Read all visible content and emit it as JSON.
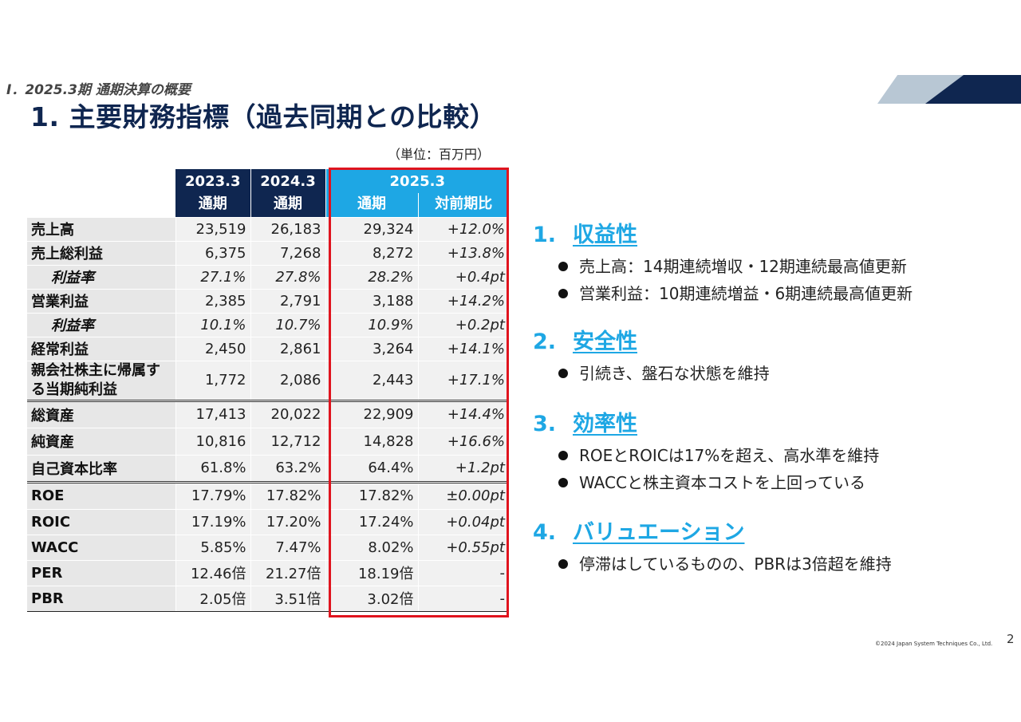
{
  "section_label": "Ⅰ．2025.3期 通期決算の概要",
  "title": "1. 主要財務指標（過去同期との比較）",
  "unit_note": "（単位：百万円）",
  "table": {
    "headers": {
      "col1_top": "2023.3",
      "col1_bottom": "通期",
      "col2_top": "2024.3",
      "col2_bottom": "通期",
      "col3_top": "2025.3",
      "col3_bottom": "通期",
      "col4_bottom": "対前期比"
    },
    "rows": [
      {
        "label": "売上高",
        "v1": "23,519",
        "v2": "26,183",
        "v3": "29,324",
        "chg": "+12.0%"
      },
      {
        "label": "売上総利益",
        "v1": "6,375",
        "v2": "7,268",
        "v3": "8,272",
        "chg": "+13.8%"
      },
      {
        "label": "利益率",
        "v1": "27.1%",
        "v2": "27.8%",
        "v3": "28.2%",
        "chg": "+0.4pt"
      },
      {
        "label": "営業利益",
        "v1": "2,385",
        "v2": "2,791",
        "v3": "3,188",
        "chg": "+14.2%"
      },
      {
        "label": "利益率",
        "v1": "10.1%",
        "v2": "10.7%",
        "v3": "10.9%",
        "chg": "+0.2pt"
      },
      {
        "label": "経常利益",
        "v1": "2,450",
        "v2": "2,861",
        "v3": "3,264",
        "chg": "+14.1%"
      },
      {
        "label": "親会社株主に帰属する当期純利益",
        "v1": "1,772",
        "v2": "2,086",
        "v3": "2,443",
        "chg": "+17.1%"
      },
      {
        "label": "総資産",
        "v1": "17,413",
        "v2": "20,022",
        "v3": "22,909",
        "chg": "+14.4%"
      },
      {
        "label": "純資産",
        "v1": "10,816",
        "v2": "12,712",
        "v3": "14,828",
        "chg": "+16.6%"
      },
      {
        "label": "自己資本比率",
        "v1": "61.8%",
        "v2": "63.2%",
        "v3": "64.4%",
        "chg": "+1.2pt"
      },
      {
        "label": "ROE",
        "v1": "17.79%",
        "v2": "17.82%",
        "v3": "17.82%",
        "chg": "±0.00pt"
      },
      {
        "label": "ROIC",
        "v1": "17.19%",
        "v2": "17.20%",
        "v3": "17.24%",
        "chg": "+0.04pt"
      },
      {
        "label": "WACC",
        "v1": "5.85%",
        "v2": "7.47%",
        "v3": "8.02%",
        "chg": "+0.55pt"
      },
      {
        "label": "PER",
        "v1": "12.46倍",
        "v2": "21.27倍",
        "v3": "18.19倍",
        "chg": "-"
      },
      {
        "label": "PBR",
        "v1": "2.05倍",
        "v2": "3.51倍",
        "v3": "3.02倍",
        "chg": "-"
      }
    ]
  },
  "points": [
    {
      "num": "1.",
      "title": "収益性",
      "bullets": [
        "売上高：14期連続増収・12期連続最高値更新",
        "営業利益：10期連続増益・6期連続最高値更新"
      ]
    },
    {
      "num": "2.",
      "title": "安全性",
      "bullets": [
        "引続き、盤石な状態を維持"
      ]
    },
    {
      "num": "3.",
      "title": "効率性",
      "bullets": [
        "ROEとROICは17%を超え、高水準を維持",
        "WACCと株主資本コストを上回っている"
      ]
    },
    {
      "num": "4.",
      "title": "バリュエーション",
      "bullets": [
        "停滞はしているものの、PBRは3倍超を維持"
      ]
    }
  ],
  "footer": {
    "copyright": "©2024 Japan System Techniques Co., Ltd.",
    "page_number": "2"
  },
  "colors": {
    "navy": "#0f2650",
    "accent_blue": "#1ea7e4",
    "highlight_red": "#e0141e"
  }
}
